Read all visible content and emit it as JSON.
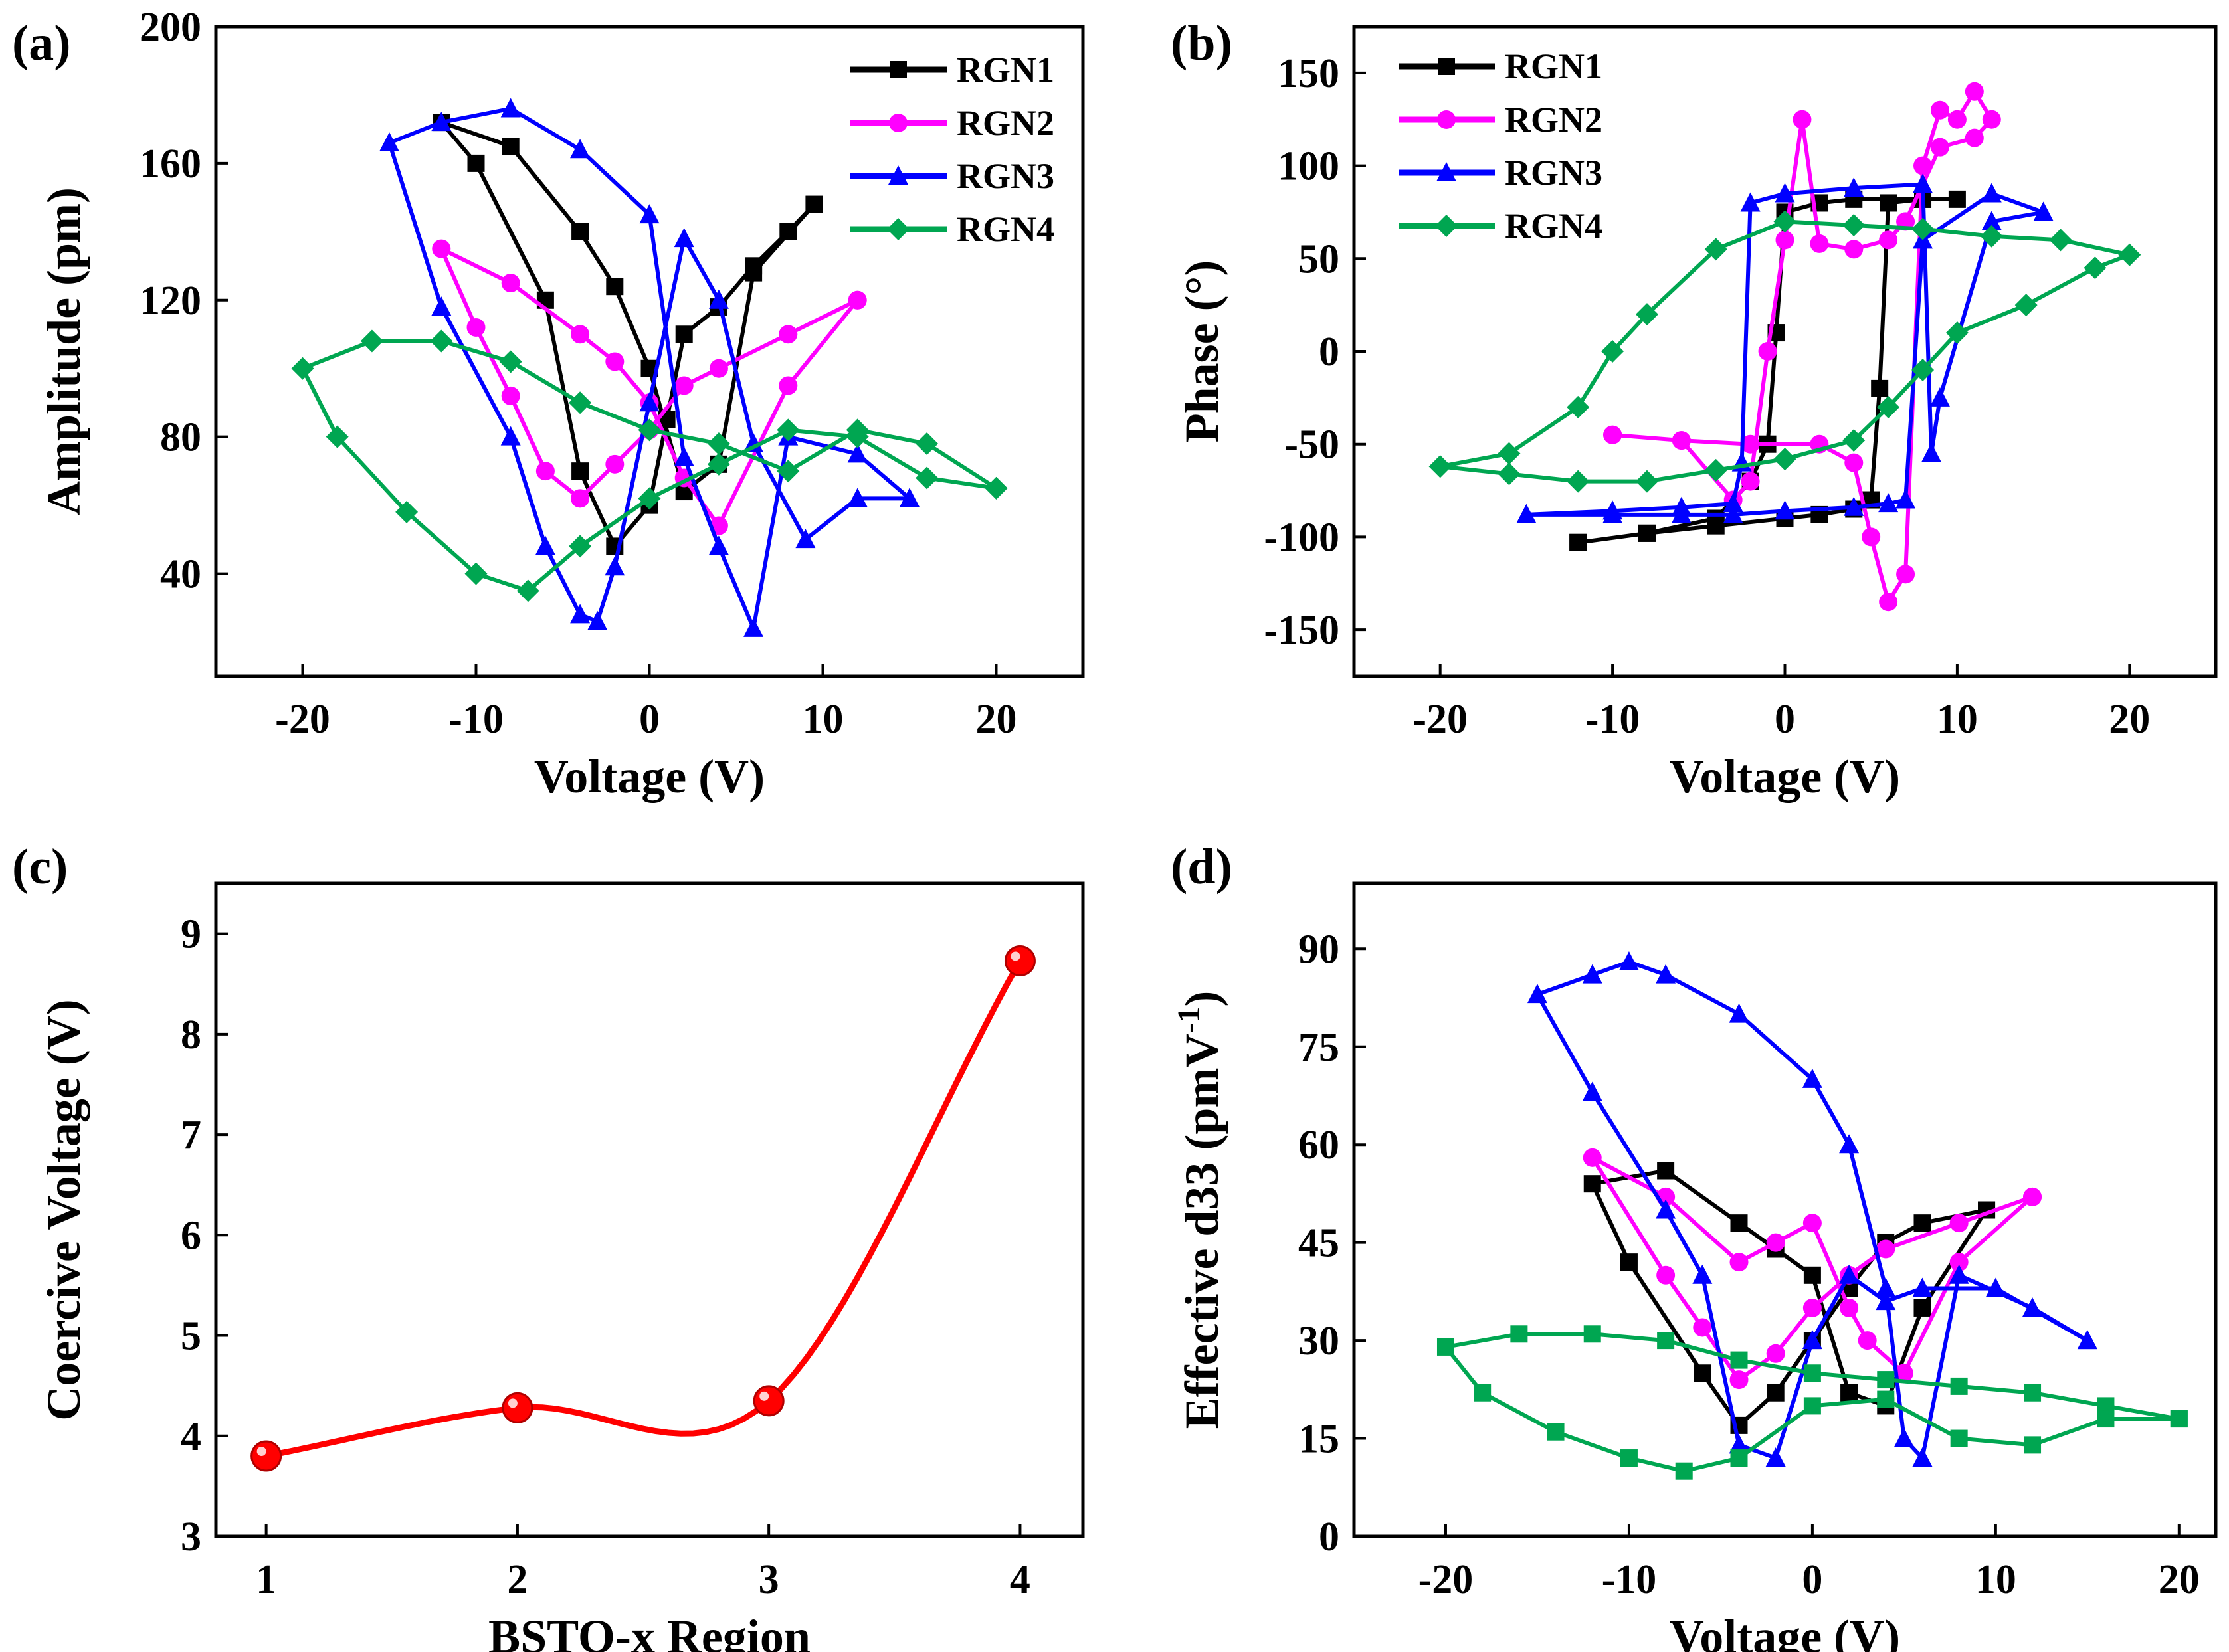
{
  "chart_data": [
    {
      "panel": "(a)",
      "type": "line",
      "xlabel": "Voltage (V)",
      "ylabel": "Amplitude (pm)",
      "xlim": [
        -25,
        25
      ],
      "ylim": [
        10,
        200
      ],
      "xticks": [
        -20,
        -10,
        0,
        10,
        20
      ],
      "yticks": [
        40,
        80,
        120,
        160,
        200
      ],
      "legend_position": "top-right",
      "series": [
        {
          "name": "RGN1",
          "color": "#000000",
          "marker": "square",
          "x": [
            9.5,
            6,
            4,
            2,
            0,
            -2,
            -4,
            -8,
            -12,
            -10,
            -6,
            -4,
            -2,
            0,
            1,
            2,
            4,
            6,
            8,
            9.5
          ],
          "y": [
            148,
            128,
            72,
            64,
            100,
            124,
            140,
            165,
            172,
            160,
            120,
            70,
            48,
            60,
            85,
            110,
            118,
            130,
            140,
            148
          ]
        },
        {
          "name": "RGN2",
          "color": "#ff00ff",
          "marker": "circle",
          "x": [
            12,
            8,
            4,
            2,
            0,
            -2,
            -4,
            -8,
            -12,
            -10,
            -8,
            -6,
            -4,
            -2,
            0,
            2,
            4,
            8,
            12
          ],
          "y": [
            120,
            95,
            54,
            68,
            90,
            102,
            110,
            125,
            135,
            112,
            92,
            70,
            62,
            72,
            82,
            95,
            100,
            110,
            120
          ]
        },
        {
          "name": "RGN3",
          "color": "#0000ff",
          "marker": "triangle",
          "x": [
            15,
            12,
            8,
            6,
            4,
            2,
            0,
            -4,
            -8,
            -12,
            -15,
            -12,
            -8,
            -6,
            -4,
            -3,
            -2,
            0,
            2,
            4,
            6,
            9,
            12,
            15
          ],
          "y": [
            62,
            75,
            80,
            24,
            48,
            74,
            145,
            164,
            176,
            172,
            166,
            118,
            80,
            48,
            28,
            26,
            42,
            90,
            138,
            120,
            78,
            50,
            62,
            62
          ]
        },
        {
          "name": "RGN4",
          "color": "#00a651",
          "marker": "diamond",
          "x": [
            20,
            16,
            12,
            8,
            4,
            0,
            -4,
            -8,
            -12,
            -16,
            -20,
            -18,
            -14,
            -10,
            -7,
            -4,
            0,
            4,
            8,
            12,
            16,
            20
          ],
          "y": [
            65,
            78,
            82,
            70,
            78,
            82,
            90,
            102,
            108,
            108,
            100,
            80,
            58,
            40,
            35,
            48,
            62,
            72,
            82,
            80,
            68,
            65
          ]
        }
      ]
    },
    {
      "panel": "(b)",
      "type": "line",
      "xlabel": "Voltage (V)",
      "ylabel": "Phase (°)",
      "xlim": [
        -25,
        25
      ],
      "ylim": [
        -175,
        175
      ],
      "xticks": [
        -20,
        -10,
        0,
        10,
        20
      ],
      "yticks": [
        -150,
        -100,
        -50,
        0,
        50,
        100,
        150
      ],
      "legend_position": "top-left",
      "series": [
        {
          "name": "RGN1",
          "color": "#000000",
          "marker": "square",
          "x": [
            -12,
            -8,
            -4,
            0,
            2,
            4,
            5,
            5.5,
            6,
            8,
            10,
            8,
            4,
            2,
            0,
            -0.5,
            -1,
            -2,
            -4,
            -8,
            -12
          ],
          "y": [
            -103,
            -98,
            -94,
            -90,
            -88,
            -85,
            -80,
            -20,
            80,
            82,
            82,
            82,
            82,
            80,
            75,
            10,
            -50,
            -70,
            -90,
            -98,
            -103
          ]
        },
        {
          "name": "RGN2",
          "color": "#ff00ff",
          "marker": "circle",
          "x": [
            -10,
            -6,
            -2,
            2,
            4,
            5,
            6,
            7,
            8,
            9,
            10,
            11,
            12,
            11,
            9,
            7,
            6,
            4,
            2,
            1,
            0,
            -1,
            -2,
            -3,
            -6,
            -10
          ],
          "y": [
            -45,
            -48,
            -50,
            -50,
            -60,
            -100,
            -135,
            -120,
            100,
            130,
            125,
            140,
            125,
            115,
            110,
            70,
            60,
            55,
            58,
            125,
            60,
            0,
            -70,
            -80,
            -48,
            -45
          ]
        },
        {
          "name": "RGN3",
          "color": "#0000ff",
          "marker": "triangle",
          "x": [
            -15,
            -10,
            -6,
            -3,
            -2.5,
            -2,
            0,
            4,
            8,
            8.5,
            9,
            12,
            15,
            12,
            8,
            7,
            6,
            4,
            0,
            -3,
            -6,
            -10,
            -15
          ],
          "y": [
            -88,
            -86,
            -84,
            -82,
            -60,
            80,
            85,
            88,
            90,
            -55,
            -25,
            70,
            75,
            85,
            60,
            -80,
            -82,
            -84,
            -86,
            -88,
            -88,
            -88,
            -88
          ]
        },
        {
          "name": "RGN4",
          "color": "#00a651",
          "marker": "diamond",
          "x": [
            -20,
            -16,
            -12,
            -8,
            -4,
            0,
            4,
            6,
            8,
            10,
            14,
            18,
            20,
            16,
            12,
            8,
            4,
            0,
            -4,
            -8,
            -10,
            -12,
            -16,
            -20
          ],
          "y": [
            -62,
            -66,
            -70,
            -70,
            -64,
            -58,
            -48,
            -30,
            -10,
            10,
            25,
            45,
            52,
            60,
            62,
            66,
            68,
            70,
            55,
            20,
            0,
            -30,
            -55,
            -62
          ]
        }
      ]
    },
    {
      "panel": "(c)",
      "type": "line",
      "xlabel": "BSTO-x Region",
      "ylabel": "Coercive Voltage (V)",
      "xlim": [
        0.8,
        4.25
      ],
      "ylim": [
        3,
        9.5
      ],
      "xticks": [
        1,
        2,
        3,
        4
      ],
      "yticks": [
        3,
        4,
        5,
        6,
        7,
        8,
        9
      ],
      "color": "#ff0000",
      "categories": [
        1,
        2,
        3,
        4
      ],
      "values": [
        3.8,
        4.28,
        4.35,
        8.73
      ]
    },
    {
      "panel": "(d)",
      "type": "line",
      "xlabel": "Voltage (V)",
      "ylabel_main": "Effective d33 (pmV",
      "ylabel_sup": "-1",
      "ylabel_end": ")",
      "xlim": [
        -25,
        22
      ],
      "ylim": [
        0,
        100
      ],
      "xticks": [
        -20,
        -10,
        0,
        10,
        20
      ],
      "yticks": [
        0,
        15,
        30,
        45,
        60,
        75,
        90
      ],
      "series": [
        {
          "name": "RGN1",
          "color": "#000000",
          "marker": "square",
          "x": [
            9.5,
            6,
            4,
            2,
            0,
            -2,
            -4,
            -8,
            -12,
            -10,
            -6,
            -4,
            -2,
            0,
            2,
            4,
            6,
            9.5
          ],
          "y": [
            50,
            35,
            20,
            22,
            40,
            44,
            48,
            56,
            54,
            42,
            25,
            17,
            22,
            30,
            38,
            45,
            48,
            50
          ]
        },
        {
          "name": "RGN2",
          "color": "#ff00ff",
          "marker": "circle",
          "x": [
            12,
            8,
            5,
            3,
            2,
            0,
            -2,
            -4,
            -8,
            -12,
            -8,
            -6,
            -4,
            -2,
            0,
            2,
            4,
            8,
            12
          ],
          "y": [
            52,
            42,
            25,
            30,
            35,
            48,
            45,
            42,
            52,
            58,
            40,
            32,
            24,
            28,
            35,
            40,
            44,
            48,
            52
          ]
        },
        {
          "name": "RGN3",
          "color": "#0000ff",
          "marker": "triangle",
          "x": [
            15,
            12,
            8,
            6,
            5,
            4,
            2,
            0,
            -4,
            -8,
            -10,
            -12,
            -15,
            -12,
            -8,
            -6,
            -4,
            -2,
            0,
            2,
            4,
            6,
            10,
            15
          ],
          "y": [
            30,
            35,
            40,
            12,
            15,
            38,
            60,
            70,
            80,
            86,
            88,
            86,
            83,
            68,
            50,
            40,
            14,
            12,
            30,
            40,
            36,
            38,
            38,
            30
          ]
        },
        {
          "name": "RGN4",
          "color": "#00a651",
          "marker": "square",
          "x": [
            20,
            16,
            12,
            8,
            4,
            0,
            -4,
            -8,
            -12,
            -16,
            -20,
            -18,
            -14,
            -10,
            -7,
            -4,
            0,
            4,
            8,
            12,
            16,
            20
          ],
          "y": [
            18,
            20,
            22,
            23,
            24,
            25,
            27,
            30,
            31,
            31,
            29,
            22,
            16,
            12,
            10,
            12,
            20,
            21,
            15,
            14,
            18,
            18
          ]
        }
      ]
    }
  ]
}
